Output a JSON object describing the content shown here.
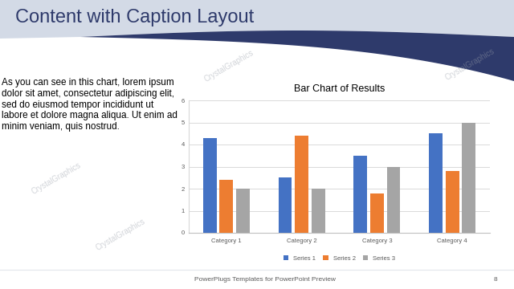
{
  "slide": {
    "title": "Content with Caption Layout",
    "caption": "As you can see in this chart, lorem ipsum dolor sit amet, consectetur adipiscing elit, sed do eiusmod tempor incididunt ut labore et dolore magna aliqua. Ut enim ad minim veniam, quis nostrud.",
    "footer": "PowerPlugs Templates for PowerPoint Preview",
    "page_number": 8,
    "watermark": "CrystalGraphics"
  },
  "chart_data": {
    "type": "bar",
    "title": "Bar Chart of Results",
    "categories": [
      "Category 1",
      "Category 2",
      "Category 3",
      "Category 4"
    ],
    "series": [
      {
        "name": "Series 1",
        "color": "#4472C4",
        "values": [
          4.3,
          2.5,
          3.5,
          4.5
        ]
      },
      {
        "name": "Series 2",
        "color": "#ED7D31",
        "values": [
          2.4,
          4.4,
          1.8,
          2.8
        ]
      },
      {
        "name": "Series 3",
        "color": "#A5A5A5",
        "values": [
          2,
          2,
          3,
          5
        ]
      }
    ],
    "ylim": [
      0,
      6
    ],
    "yticks": [
      0,
      1,
      2,
      3,
      4,
      5,
      6
    ],
    "grid": true,
    "legend": "bottom"
  }
}
